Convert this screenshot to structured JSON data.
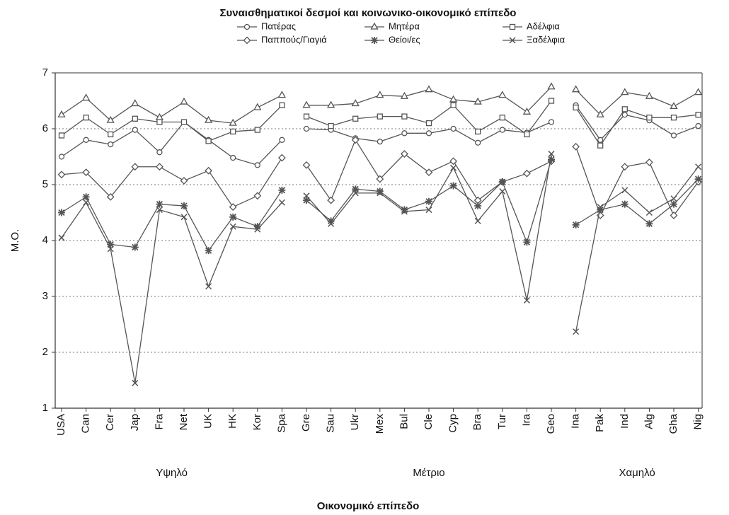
{
  "chart_data": {
    "type": "line",
    "title": "Συναισθηματικοί δεσμοί και κοινωνικο-οικονομικό επίπεδο",
    "x_label": "Οικονομικό επίπεδο",
    "y_label": "Μ.Ο.",
    "ylim": [
      1,
      7
    ],
    "yticks": [
      1,
      2,
      3,
      4,
      5,
      6,
      7
    ],
    "grid": true,
    "groups": [
      {
        "label": "Υψηλό",
        "categories": [
          "USA",
          "Can",
          "Cer",
          "Jap",
          "Fra",
          "Net",
          "UK",
          "HK",
          "Kor",
          "Spa"
        ]
      },
      {
        "label": "Μέτριο",
        "categories": [
          "Gre",
          "Sau",
          "Ukr",
          "Mex",
          "Bul",
          "Cle",
          "Cyp",
          "Bra",
          "Tur",
          "Ira",
          "Geo"
        ]
      },
      {
        "label": "Χαμηλό",
        "categories": [
          "Ina",
          "Pak",
          "Ind",
          "Alg",
          "Gha",
          "Nig"
        ]
      }
    ],
    "series": [
      {
        "name": "Πατέρας",
        "marker": "circle",
        "color": "#555555",
        "values": [
          [
            5.5,
            5.8,
            5.72,
            5.98,
            5.58,
            6.12,
            5.8,
            5.48,
            5.35,
            5.8
          ],
          [
            6.0,
            5.98,
            5.83,
            5.77,
            5.92,
            5.92,
            6.0,
            5.75,
            5.98,
            5.93,
            6.12
          ],
          [
            6.42,
            5.8,
            6.25,
            6.15,
            5.88,
            6.05
          ]
        ]
      },
      {
        "name": "Μητέρα",
        "marker": "triangle",
        "color": "#555555",
        "values": [
          [
            6.25,
            6.55,
            6.15,
            6.45,
            6.2,
            6.48,
            6.15,
            6.1,
            6.38,
            6.6
          ],
          [
            6.42,
            6.42,
            6.45,
            6.6,
            6.58,
            6.7,
            6.52,
            6.48,
            6.6,
            6.3,
            6.75
          ],
          [
            6.7,
            6.25,
            6.65,
            6.58,
            6.4,
            6.65
          ]
        ]
      },
      {
        "name": "Αδέλφια",
        "marker": "square",
        "color": "#555555",
        "values": [
          [
            5.88,
            6.2,
            5.9,
            6.18,
            6.12,
            6.12,
            5.78,
            5.95,
            5.98,
            6.42
          ],
          [
            6.22,
            6.05,
            6.18,
            6.22,
            6.22,
            6.1,
            6.42,
            5.95,
            6.2,
            5.9,
            6.5
          ],
          [
            6.38,
            5.7,
            6.35,
            6.2,
            6.2,
            6.25
          ]
        ]
      },
      {
        "name": "Παππούς/Γιαγιά",
        "marker": "diamond",
        "color": "#555555",
        "values": [
          [
            5.18,
            5.22,
            4.78,
            5.32,
            5.32,
            5.07,
            5.25,
            4.6,
            4.8,
            5.48
          ],
          [
            5.35,
            4.72,
            5.8,
            5.1,
            5.55,
            5.22,
            5.42,
            4.72,
            5.05,
            5.2,
            5.42
          ],
          [
            5.68,
            4.45,
            5.32,
            5.4,
            4.45,
            5.05
          ]
        ]
      },
      {
        "name": "Θείοι/ες",
        "marker": "asterisk",
        "color": "#555555",
        "values": [
          [
            4.5,
            4.78,
            3.93,
            3.88,
            4.65,
            4.62,
            3.82,
            4.42,
            4.25,
            4.9
          ],
          [
            4.72,
            4.35,
            4.92,
            4.88,
            4.55,
            4.7,
            4.98,
            4.62,
            5.05,
            3.97,
            5.45
          ],
          [
            4.28,
            4.55,
            4.65,
            4.3,
            4.65,
            5.1
          ]
        ]
      },
      {
        "name": "Ξαδέλφια",
        "marker": "cross",
        "color": "#555555",
        "values": [
          [
            4.05,
            4.68,
            3.85,
            1.45,
            4.55,
            4.42,
            3.18,
            4.25,
            4.2,
            4.68
          ],
          [
            4.8,
            4.3,
            4.85,
            4.85,
            4.52,
            4.55,
            5.3,
            4.35,
            4.88,
            2.93,
            5.55
          ],
          [
            2.37,
            4.6,
            4.9,
            4.5,
            4.75,
            5.32
          ]
        ]
      }
    ]
  }
}
